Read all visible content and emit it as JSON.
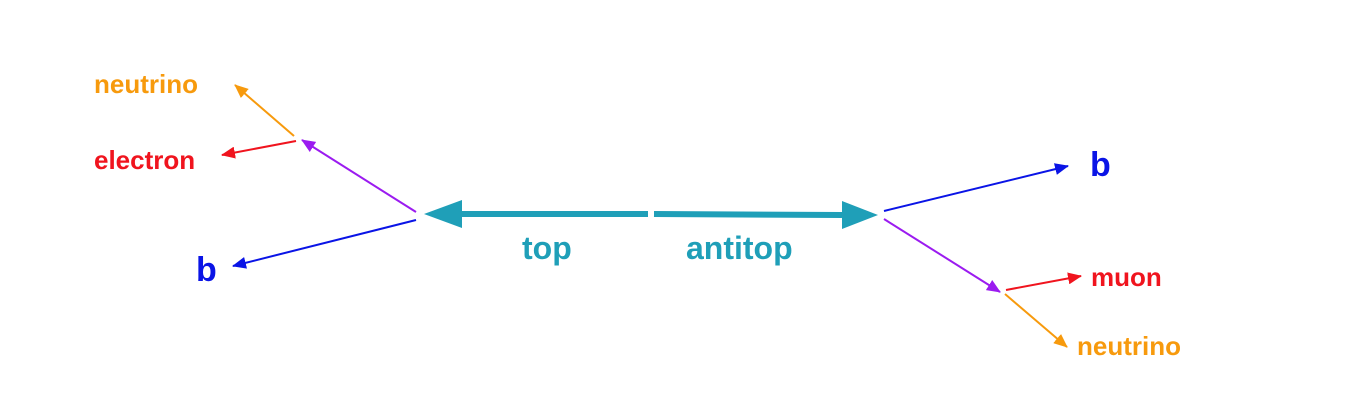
{
  "labels": {
    "neutrino_left": "neutrino",
    "electron": "electron",
    "b_left": "b",
    "top": "top",
    "antitop": "antitop",
    "b_right": "b",
    "muon": "muon",
    "neutrino_right": "neutrino"
  },
  "colors": {
    "top_quark": "#1f9fb8",
    "w_boson": "#9b1bf0",
    "b_quark": "#0a14e6",
    "lepton": "#f0141e",
    "neutrino": "#f79a0d"
  }
}
